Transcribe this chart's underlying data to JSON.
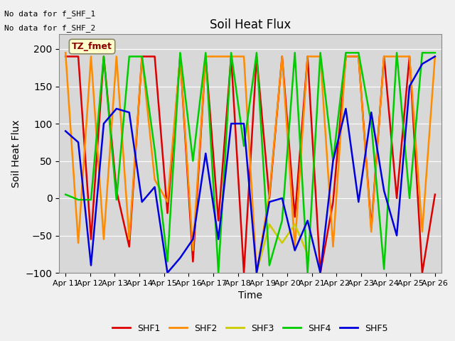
{
  "title": "Soil Heat Flux",
  "ylabel": "Soil Heat Flux",
  "xlabel": "Time",
  "ylim": [
    -100,
    220
  ],
  "yticks": [
    -100,
    -50,
    0,
    50,
    100,
    150,
    200
  ],
  "text_no_data": [
    "No data for f_SHF_1",
    "No data for f_SHF_2"
  ],
  "tz_label": "TZ_fmet",
  "legend_labels": [
    "SHF1",
    "SHF2",
    "SHF3",
    "SHF4",
    "SHF5"
  ],
  "legend_colors": [
    "#dd0000",
    "#ff8c00",
    "#cccc00",
    "#00cc00",
    "#0000dd"
  ],
  "background_color": "#d8d8d8",
  "x_dates": [
    "Apr 11",
    "Apr 12",
    "Apr 13",
    "Apr 14",
    "Apr 15",
    "Apr 16",
    "Apr 17",
    "Apr 18",
    "Apr 19",
    "Apr 20",
    "Apr 21",
    "Apr 22",
    "Apr 23",
    "Apr 24",
    "Apr 25",
    "Apr 26"
  ],
  "SHF1": [
    190,
    190,
    -55,
    190,
    10,
    -65,
    190,
    190,
    -20,
    190,
    -85,
    190,
    -30,
    190,
    -100,
    190,
    0,
    190,
    -25,
    190,
    -100,
    -5,
    190,
    190,
    -40,
    190,
    0,
    190,
    -100,
    5
  ],
  "SHF2": [
    195,
    -60,
    190,
    -55,
    190,
    -55,
    190,
    25,
    -5,
    190,
    -70,
    190,
    190,
    190,
    190,
    -100,
    5,
    190,
    -65,
    190,
    190,
    -65,
    190,
    190,
    -45,
    190,
    190,
    190,
    -45,
    190
  ],
  "SHF3": [
    null,
    null,
    null,
    null,
    null,
    null,
    null,
    null,
    null,
    null,
    null,
    null,
    -65,
    null,
    null,
    -100,
    -35,
    -60,
    -35,
    -75,
    null,
    null,
    null,
    null,
    null,
    null,
    null,
    null,
    null,
    null
  ],
  "SHF4": [
    5,
    -2,
    -2,
    190,
    -2,
    190,
    190,
    65,
    -85,
    195,
    50,
    195,
    -100,
    195,
    70,
    195,
    -90,
    -30,
    195,
    -100,
    195,
    50,
    195,
    195,
    100,
    -95,
    195,
    0,
    195,
    195
  ],
  "SHF5": [
    90,
    75,
    -90,
    100,
    120,
    115,
    -5,
    15,
    -100,
    -80,
    -55,
    60,
    -55,
    100,
    100,
    -100,
    -5,
    0,
    -70,
    -30,
    -100,
    50,
    120,
    -5,
    115,
    10,
    -50,
    150,
    180,
    190
  ]
}
